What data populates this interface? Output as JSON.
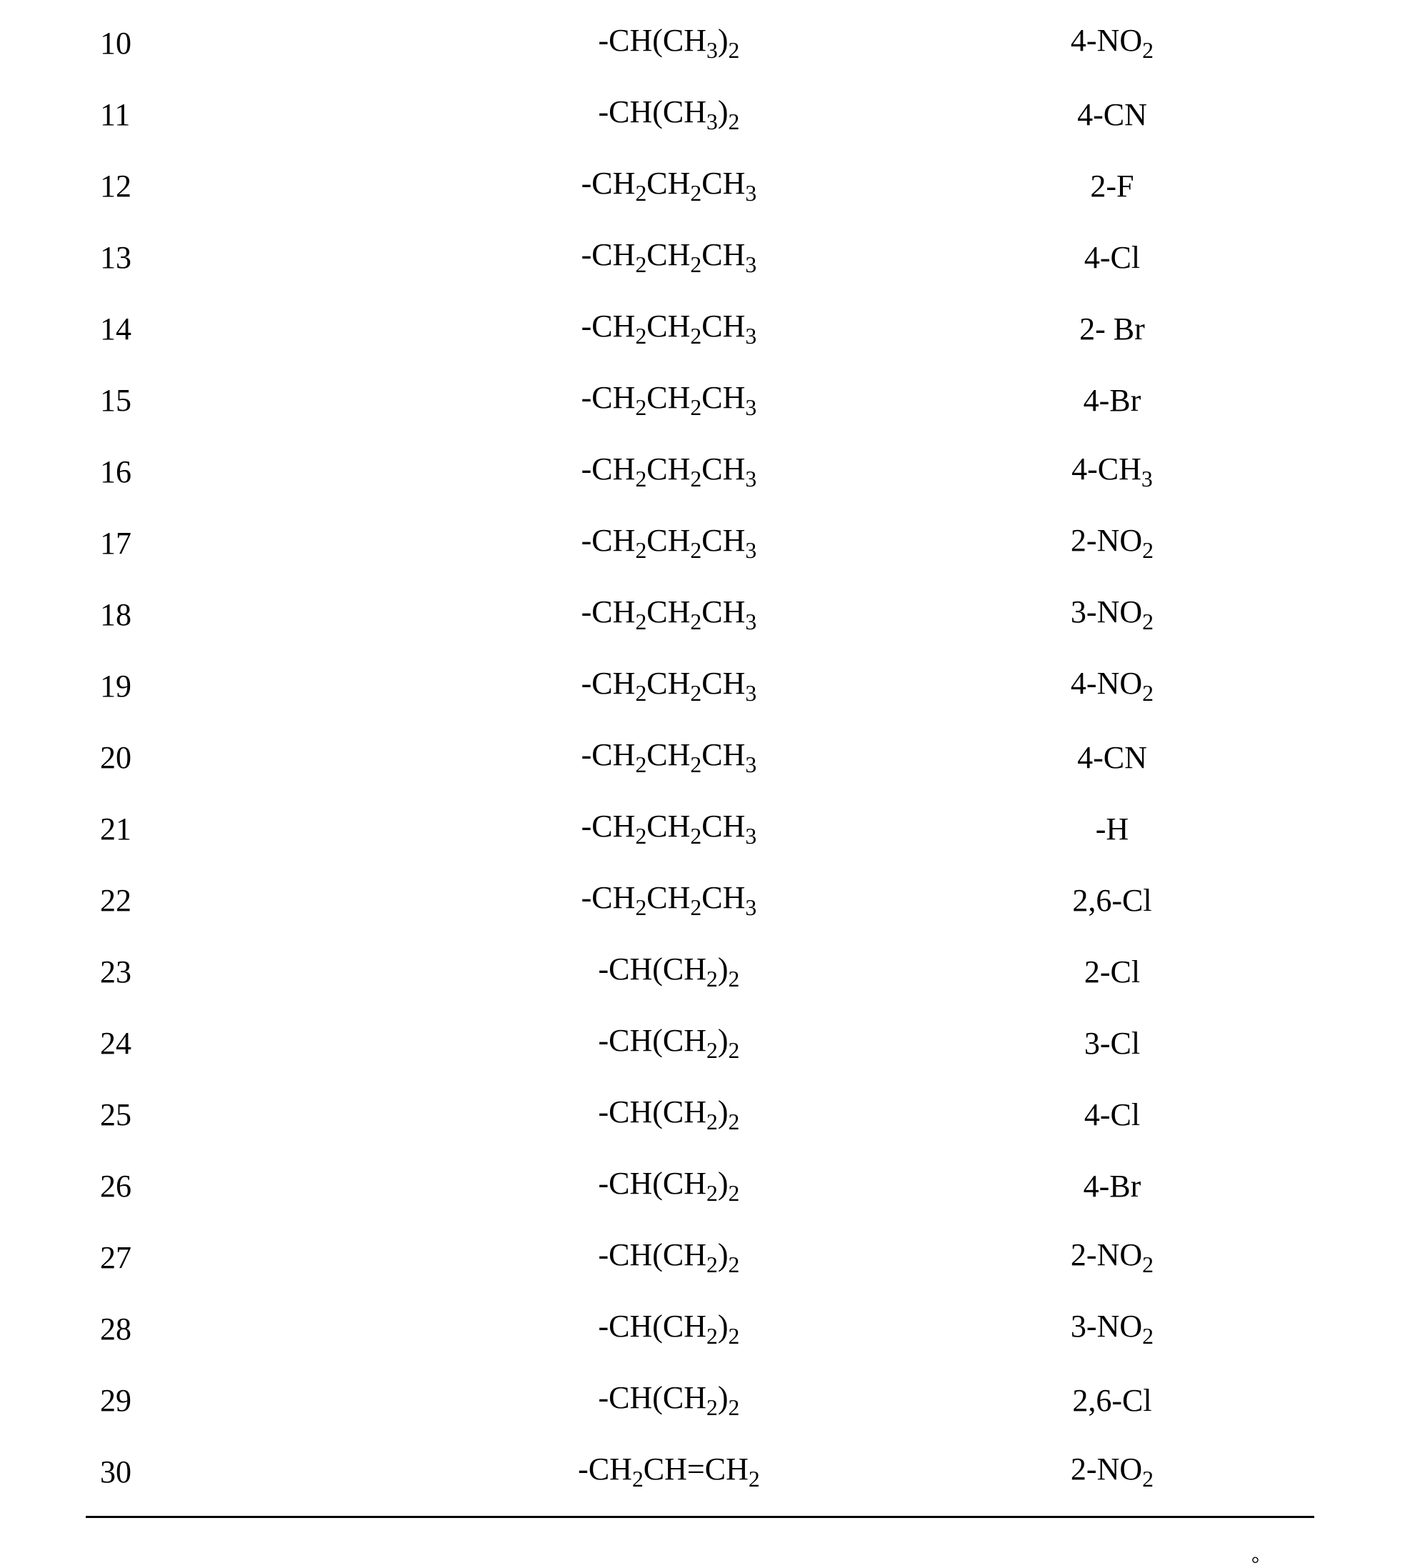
{
  "table": {
    "font_family": "Times New Roman",
    "font_size_pt": 33,
    "text_color": "#000000",
    "background_color": "#ffffff",
    "rule_color": "#000000",
    "rows": [
      {
        "idx": "10",
        "mid_html": "-CH(CH<sub>3</sub>)<sub>2</sub>",
        "rgt_html": "4-NO<sub>2</sub>"
      },
      {
        "idx": "11",
        "mid_html": "-CH(CH<sub>3</sub>)<sub>2</sub>",
        "rgt_html": "4-CN"
      },
      {
        "idx": "12",
        "mid_html": "-CH<sub>2</sub>CH<sub>2</sub>CH<sub>3</sub>",
        "rgt_html": "2-F"
      },
      {
        "idx": "13",
        "mid_html": "-CH<sub>2</sub>CH<sub>2</sub>CH<sub>3</sub>",
        "rgt_html": "4-Cl"
      },
      {
        "idx": "14",
        "mid_html": "-CH<sub>2</sub>CH<sub>2</sub>CH<sub>3</sub>",
        "rgt_html": "2- Br"
      },
      {
        "idx": "15",
        "mid_html": "-CH<sub>2</sub>CH<sub>2</sub>CH<sub>3</sub>",
        "rgt_html": "4-Br"
      },
      {
        "idx": "16",
        "mid_html": "-CH<sub>2</sub>CH<sub>2</sub>CH<sub>3</sub>",
        "rgt_html": "4-CH<sub>3</sub>"
      },
      {
        "idx": "17",
        "mid_html": "-CH<sub>2</sub>CH<sub>2</sub>CH<sub>3</sub>",
        "rgt_html": "2-NO<sub>2</sub>"
      },
      {
        "idx": "18",
        "mid_html": "-CH<sub>2</sub>CH<sub>2</sub>CH<sub>3</sub>",
        "rgt_html": "3-NO<sub>2</sub>"
      },
      {
        "idx": "19",
        "mid_html": "-CH<sub>2</sub>CH<sub>2</sub>CH<sub>3</sub>",
        "rgt_html": "4-NO<sub>2</sub>"
      },
      {
        "idx": "20",
        "mid_html": "-CH<sub>2</sub>CH<sub>2</sub>CH<sub>3</sub>",
        "rgt_html": "4-CN"
      },
      {
        "idx": "21",
        "mid_html": "-CH<sub>2</sub>CH<sub>2</sub>CH<sub>3</sub>",
        "rgt_html": "-H"
      },
      {
        "idx": "22",
        "mid_html": "-CH<sub>2</sub>CH<sub>2</sub>CH<sub>3</sub>",
        "rgt_html": "2,6-Cl"
      },
      {
        "idx": "23",
        "mid_html": "-CH(CH<sub>2</sub>)<sub>2</sub>",
        "rgt_html": "2-Cl"
      },
      {
        "idx": "24",
        "mid_html": "-CH(CH<sub>2</sub>)<sub>2</sub>",
        "rgt_html": "3-Cl"
      },
      {
        "idx": "25",
        "mid_html": "-CH(CH<sub>2</sub>)<sub>2</sub>",
        "rgt_html": "4-Cl"
      },
      {
        "idx": "26",
        "mid_html": "-CH(CH<sub>2</sub>)<sub>2</sub>",
        "rgt_html": "4-Br"
      },
      {
        "idx": "27",
        "mid_html": "-CH(CH<sub>2</sub>)<sub>2</sub>",
        "rgt_html": "2-NO<sub>2</sub>"
      },
      {
        "idx": "28",
        "mid_html": "-CH(CH<sub>2</sub>)<sub>2</sub>",
        "rgt_html": "3-NO<sub>2</sub>"
      },
      {
        "idx": "29",
        "mid_html": "-CH(CH<sub>2</sub>)<sub>2</sub>",
        "rgt_html": "2,6-Cl"
      },
      {
        "idx": "30",
        "mid_html": "-CH<sub>2</sub>CH=CH<sub>2</sub>",
        "rgt_html": "2-NO<sub>2</sub>"
      }
    ],
    "bottom_rule_after_last_row": true
  },
  "trailing_mark": "。"
}
